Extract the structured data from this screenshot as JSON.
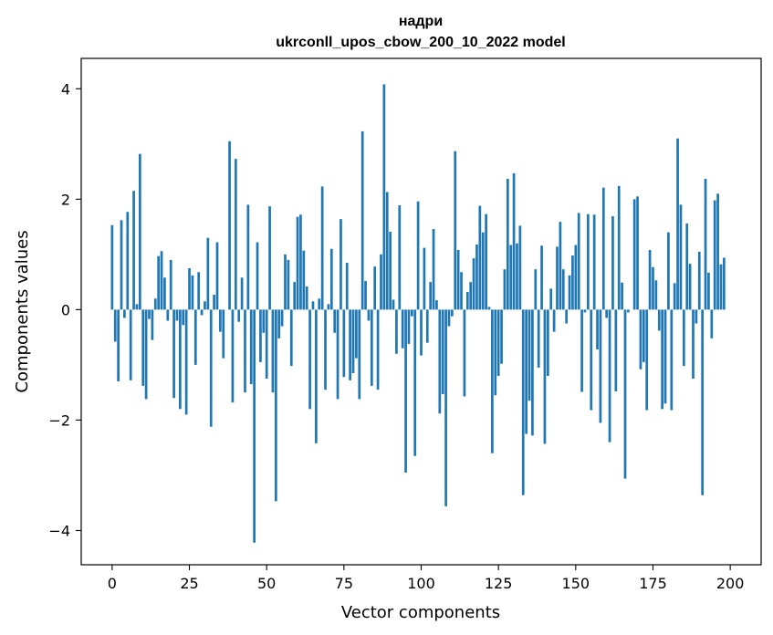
{
  "chart_data": {
    "type": "bar",
    "title_line1": "надри",
    "title_line2": "ukrconll_upos_cbow_200_10_2022 model",
    "xlabel": "Vector components",
    "ylabel": "Components values",
    "xlim": [
      -10,
      210
    ],
    "ylim": [
      -4.62,
      4.55
    ],
    "xticks": [
      0,
      25,
      50,
      75,
      100,
      125,
      150,
      175,
      200
    ],
    "yticks": [
      -4,
      -2,
      0,
      2,
      4
    ],
    "ytick_labels": [
      "−4",
      "−2",
      "0",
      "2",
      "4"
    ],
    "grid": false,
    "bar_color": "#1f77b4",
    "values": [
      1.53,
      -0.58,
      -1.3,
      1.62,
      -0.15,
      1.77,
      -1.28,
      2.15,
      0.1,
      2.82,
      -1.38,
      -1.62,
      -0.17,
      -0.55,
      0.2,
      0.97,
      1.06,
      0.58,
      -0.2,
      0.9,
      -1.6,
      -0.2,
      -1.8,
      -0.28,
      -1.9,
      0.75,
      0.62,
      -1.0,
      0.68,
      -0.1,
      0.15,
      1.3,
      -2.12,
      0.27,
      1.22,
      -0.4,
      -0.88,
      0.0,
      3.05,
      -1.68,
      2.73,
      -0.22,
      0.58,
      -1.5,
      1.9,
      -1.35,
      -4.22,
      1.22,
      -0.95,
      -0.42,
      -1.25,
      1.87,
      -1.5,
      -3.47,
      -0.52,
      -0.3,
      1.0,
      0.9,
      -1.02,
      0.5,
      1.68,
      1.72,
      1.07,
      0.42,
      -1.8,
      0.15,
      -2.42,
      0.2,
      2.23,
      -1.45,
      0.1,
      1.1,
      -0.42,
      -1.62,
      1.64,
      -1.22,
      0.85,
      -1.28,
      -1.15,
      -0.88,
      -1.62,
      3.23,
      0.52,
      -0.2,
      -1.38,
      0.78,
      -1.45,
      1.0,
      4.08,
      2.13,
      1.41,
      0.18,
      -0.8,
      1.89,
      -0.7,
      -2.95,
      -0.62,
      -0.12,
      -2.65,
      1.96,
      -0.83,
      1.12,
      -0.6,
      0.5,
      1.46,
      0.17,
      -1.88,
      -1.53,
      -3.56,
      -0.3,
      -0.12,
      2.87,
      1.08,
      0.68,
      -1.57,
      0.32,
      0.5,
      0.93,
      1.18,
      1.88,
      1.4,
      1.73,
      0.05,
      -2.6,
      -1.55,
      -1.2,
      -0.98,
      0.73,
      2.37,
      1.17,
      2.47,
      1.2,
      1.52,
      -3.36,
      -2.25,
      -1.65,
      -2.28,
      0.73,
      -1.05,
      1.16,
      -2.43,
      -1.2,
      0.38,
      -0.4,
      1.14,
      1.59,
      0.73,
      -0.25,
      0.62,
      0.98,
      1.17,
      1.75,
      -1.49,
      -0.05,
      1.73,
      -1.82,
      1.72,
      -0.72,
      -2.05,
      2.21,
      -0.15,
      -2.4,
      1.69,
      -1.48,
      2.24,
      0.49,
      -3.06,
      -0.05,
      0.0,
      2.0,
      2.05,
      -1.08,
      -0.95,
      -1.82,
      1.08,
      0.77,
      0.53,
      -0.38,
      -1.8,
      -1.7,
      1.4,
      -1.82,
      0.48,
      3.1,
      1.9,
      -1.02,
      1.56,
      0.83,
      -1.25,
      -0.25,
      1.05,
      -3.36,
      2.37,
      0.67,
      -0.52,
      1.98,
      2.1,
      0.82,
      0.94
    ]
  }
}
